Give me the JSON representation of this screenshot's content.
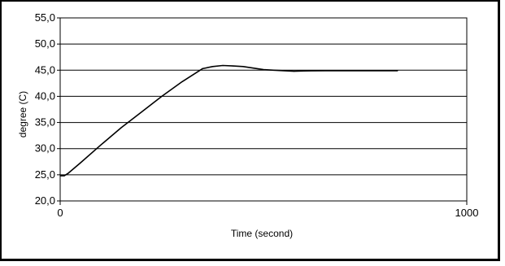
{
  "chart_data": {
    "type": "line",
    "title": "",
    "xlabel": "Time (second)",
    "ylabel": "degree (C)",
    "xlim": [
      0,
      1000
    ],
    "ylim": [
      20,
      55
    ],
    "x_ticks": [
      {
        "value": 0,
        "label": "0"
      },
      {
        "value": 1000,
        "label": "1000"
      }
    ],
    "y_ticks": [
      {
        "value": 20,
        "label": "20,0"
      },
      {
        "value": 25,
        "label": "25,0"
      },
      {
        "value": 30,
        "label": "30,0"
      },
      {
        "value": 35,
        "label": "35,0"
      },
      {
        "value": 40,
        "label": "40,0"
      },
      {
        "value": 45,
        "label": "45,0"
      },
      {
        "value": 50,
        "label": "50,0"
      },
      {
        "value": 55,
        "label": "55,0"
      }
    ],
    "grid": "horizontal",
    "series": [
      {
        "color": "#000000",
        "x": [
          0,
          10,
          20,
          50,
          100,
          150,
          200,
          250,
          300,
          350,
          375,
          400,
          425,
          450,
          475,
          500,
          525,
          550,
          575,
          600,
          650,
          700,
          750,
          800,
          830
        ],
        "values": [
          24.8,
          24.8,
          25.3,
          27.3,
          30.7,
          34.0,
          37.0,
          40.0,
          42.8,
          45.3,
          45.7,
          45.9,
          45.8,
          45.7,
          45.4,
          45.1,
          45.0,
          44.9,
          44.8,
          44.85,
          44.9,
          44.9,
          44.9,
          44.9,
          44.9
        ]
      }
    ]
  }
}
